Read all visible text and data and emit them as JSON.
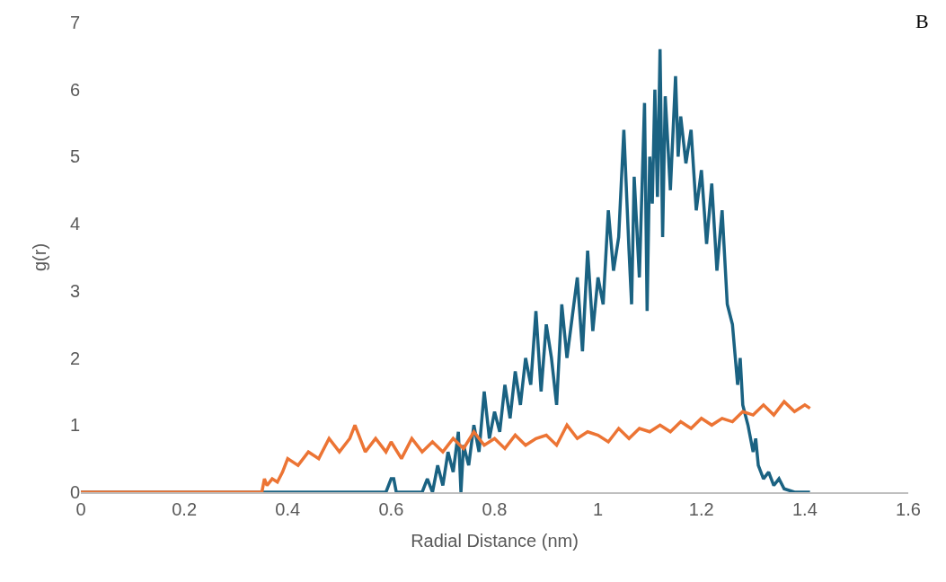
{
  "chart_data": {
    "type": "line",
    "xlabel": "Radial Distance (nm)",
    "ylabel": "g(r)",
    "annotations": [
      "B"
    ],
    "xlim": [
      0,
      1.6
    ],
    "xticks": [
      0,
      0.2,
      0.4,
      0.6,
      0.8,
      1,
      1.2,
      1.4,
      1.6
    ],
    "ylim": [
      0,
      7
    ],
    "yticks": [
      0,
      1,
      2,
      3,
      4,
      5,
      6,
      7
    ],
    "marker": "none",
    "line_style": "solid",
    "series": [
      {
        "color": "#1a6282",
        "x": [
          0,
          0.59,
          0.6,
          0.605,
          0.61,
          0.66,
          0.67,
          0.68,
          0.69,
          0.7,
          0.71,
          0.72,
          0.73,
          0.735,
          0.74,
          0.75,
          0.76,
          0.77,
          0.78,
          0.79,
          0.8,
          0.81,
          0.82,
          0.83,
          0.84,
          0.85,
          0.86,
          0.87,
          0.88,
          0.89,
          0.9,
          0.91,
          0.92,
          0.93,
          0.94,
          0.95,
          0.96,
          0.97,
          0.98,
          0.99,
          1.0,
          1.01,
          1.02,
          1.03,
          1.04,
          1.05,
          1.06,
          1.065,
          1.07,
          1.08,
          1.09,
          1.095,
          1.1,
          1.105,
          1.11,
          1.115,
          1.12,
          1.125,
          1.13,
          1.14,
          1.15,
          1.155,
          1.16,
          1.17,
          1.18,
          1.19,
          1.2,
          1.21,
          1.22,
          1.23,
          1.24,
          1.25,
          1.26,
          1.27,
          1.275,
          1.28,
          1.29,
          1.3,
          1.305,
          1.31,
          1.32,
          1.33,
          1.34,
          1.35,
          1.36,
          1.38,
          1.41
        ],
        "values": [
          0,
          0,
          0.2,
          0.2,
          0,
          0,
          0.2,
          0,
          0.4,
          0.1,
          0.6,
          0.3,
          0.9,
          0,
          0.7,
          0.4,
          1.0,
          0.6,
          1.5,
          0.8,
          1.2,
          0.9,
          1.6,
          1.1,
          1.8,
          1.3,
          2.0,
          1.6,
          2.7,
          1.5,
          2.5,
          2.0,
          1.3,
          2.8,
          2.0,
          2.6,
          3.2,
          2.1,
          3.6,
          2.4,
          3.2,
          2.8,
          4.2,
          3.3,
          3.8,
          5.4,
          3.6,
          2.8,
          4.7,
          3.2,
          5.8,
          2.7,
          5.0,
          4.3,
          6.0,
          4.4,
          6.6,
          3.8,
          5.9,
          4.5,
          6.2,
          5.0,
          5.6,
          4.9,
          5.4,
          4.2,
          4.8,
          3.7,
          4.6,
          3.3,
          4.2,
          2.8,
          2.5,
          1.6,
          2.0,
          1.3,
          1.0,
          0.6,
          0.8,
          0.4,
          0.2,
          0.3,
          0.1,
          0.2,
          0.05,
          0,
          0
        ]
      },
      {
        "color": "#ec7434",
        "x": [
          0,
          0.35,
          0.355,
          0.36,
          0.37,
          0.38,
          0.39,
          0.4,
          0.42,
          0.44,
          0.46,
          0.48,
          0.5,
          0.52,
          0.53,
          0.55,
          0.57,
          0.59,
          0.6,
          0.62,
          0.64,
          0.66,
          0.68,
          0.7,
          0.72,
          0.74,
          0.76,
          0.78,
          0.8,
          0.82,
          0.84,
          0.86,
          0.88,
          0.9,
          0.92,
          0.94,
          0.96,
          0.98,
          1.0,
          1.02,
          1.04,
          1.06,
          1.08,
          1.1,
          1.12,
          1.14,
          1.16,
          1.18,
          1.2,
          1.22,
          1.24,
          1.26,
          1.28,
          1.3,
          1.32,
          1.34,
          1.36,
          1.38,
          1.4,
          1.41
        ],
        "values": [
          0,
          0,
          0.2,
          0.1,
          0.2,
          0.15,
          0.3,
          0.5,
          0.4,
          0.6,
          0.5,
          0.8,
          0.6,
          0.8,
          1.0,
          0.6,
          0.8,
          0.6,
          0.75,
          0.5,
          0.8,
          0.6,
          0.75,
          0.6,
          0.8,
          0.65,
          0.9,
          0.7,
          0.8,
          0.65,
          0.85,
          0.7,
          0.8,
          0.85,
          0.7,
          1.0,
          0.8,
          0.9,
          0.85,
          0.75,
          0.95,
          0.8,
          0.95,
          0.9,
          1.0,
          0.9,
          1.05,
          0.95,
          1.1,
          1.0,
          1.1,
          1.05,
          1.2,
          1.15,
          1.3,
          1.15,
          1.35,
          1.2,
          1.3,
          1.25
        ]
      }
    ]
  }
}
